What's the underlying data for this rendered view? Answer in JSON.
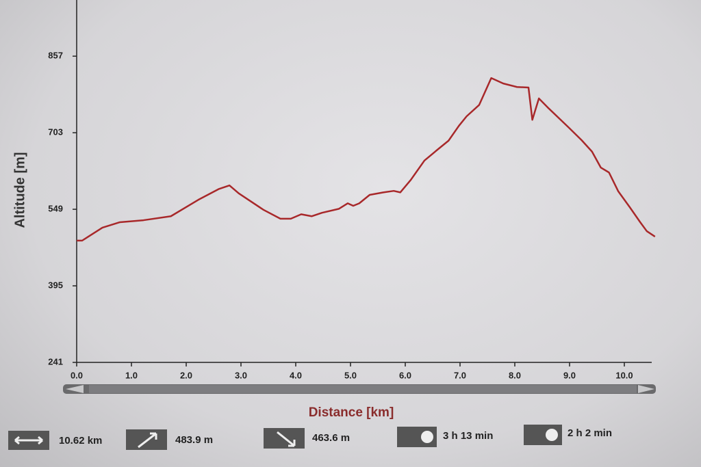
{
  "chart_data": {
    "type": "line",
    "xlabel": "Distance [km]",
    "ylabel": "Altitude [m]",
    "color": "#a8282a",
    "x": [
      0,
      0.1,
      0.47,
      0.79,
      1.22,
      1.72,
      2.22,
      2.6,
      2.79,
      2.96,
      3.41,
      3.72,
      3.91,
      4.1,
      4.29,
      4.48,
      4.79,
      4.95,
      5.05,
      5.16,
      5.35,
      5.6,
      5.79,
      5.91,
      6.1,
      6.35,
      6.6,
      6.79,
      6.98,
      7.12,
      7.35,
      7.57,
      7.79,
      8.04,
      8.25,
      8.32,
      8.44,
      8.6,
      8.97,
      9.22,
      9.41,
      9.57,
      9.72,
      9.89,
      10.1,
      10.29,
      10.41,
      10.56
    ],
    "values": [
      486,
      486,
      512,
      523,
      527,
      535,
      568,
      590,
      597,
      581,
      548,
      530,
      530,
      539,
      535,
      542,
      550,
      561,
      556,
      561,
      578,
      583,
      586,
      583,
      608,
      647,
      670,
      687,
      717,
      736,
      759,
      813,
      802,
      795,
      794,
      729,
      772,
      754,
      715,
      688,
      665,
      633,
      623,
      585,
      553,
      523,
      505,
      494
    ],
    "xlim": [
      0,
      10.7
    ],
    "ylim": [
      241,
      970
    ],
    "xticks": [
      {
        "value": 0,
        "label": "0.0"
      },
      {
        "value": 1,
        "label": "1.0"
      },
      {
        "value": 2,
        "label": "2.0"
      },
      {
        "value": 3,
        "label": "3.0"
      },
      {
        "value": 4,
        "label": "4.0"
      },
      {
        "value": 5,
        "label": "5.0"
      },
      {
        "value": 6,
        "label": "6.0"
      },
      {
        "value": 7,
        "label": "7.0"
      },
      {
        "value": 8,
        "label": "8.0"
      },
      {
        "value": 9,
        "label": "9.0"
      },
      {
        "value": 10,
        "label": "10.0"
      }
    ],
    "yticks": [
      241,
      395,
      549,
      703,
      857
    ]
  },
  "summary": {
    "distance": "10.62 km",
    "ascent": "483.9 m",
    "descent": "463.6 m",
    "walking_time": "3 h 13 min",
    "cycling_time": "2 h 2 min"
  }
}
